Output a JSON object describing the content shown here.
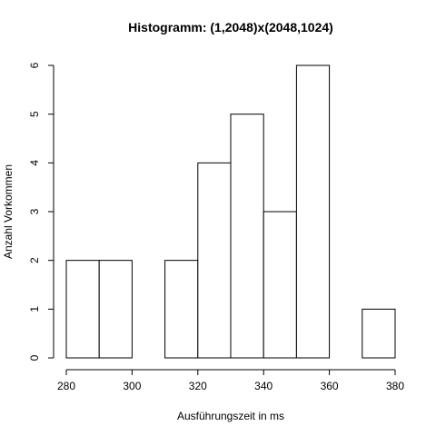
{
  "chart_data": {
    "type": "bar",
    "title": "Histogramm: (1,2048)x(2048,1024)",
    "xlabel": "Ausführungszeit in ms",
    "ylabel": "Anzahl Vorkommen",
    "bins": [
      {
        "start": 280,
        "end": 290,
        "count": 2
      },
      {
        "start": 290,
        "end": 300,
        "count": 2
      },
      {
        "start": 300,
        "end": 310,
        "count": 0
      },
      {
        "start": 310,
        "end": 320,
        "count": 2
      },
      {
        "start": 320,
        "end": 330,
        "count": 4
      },
      {
        "start": 330,
        "end": 340,
        "count": 5
      },
      {
        "start": 340,
        "end": 350,
        "count": 3
      },
      {
        "start": 350,
        "end": 360,
        "count": 6
      },
      {
        "start": 360,
        "end": 370,
        "count": 0
      },
      {
        "start": 370,
        "end": 380,
        "count": 1
      }
    ],
    "xlim": [
      280,
      380
    ],
    "ylim": [
      0,
      6
    ],
    "x_ticks": [
      "280",
      "300",
      "320",
      "340",
      "360",
      "380"
    ],
    "y_ticks": [
      "0",
      "1",
      "2",
      "3",
      "4",
      "5",
      "6"
    ],
    "grid": false,
    "bar_fill": "#ffffff",
    "bar_stroke": "#000000"
  }
}
